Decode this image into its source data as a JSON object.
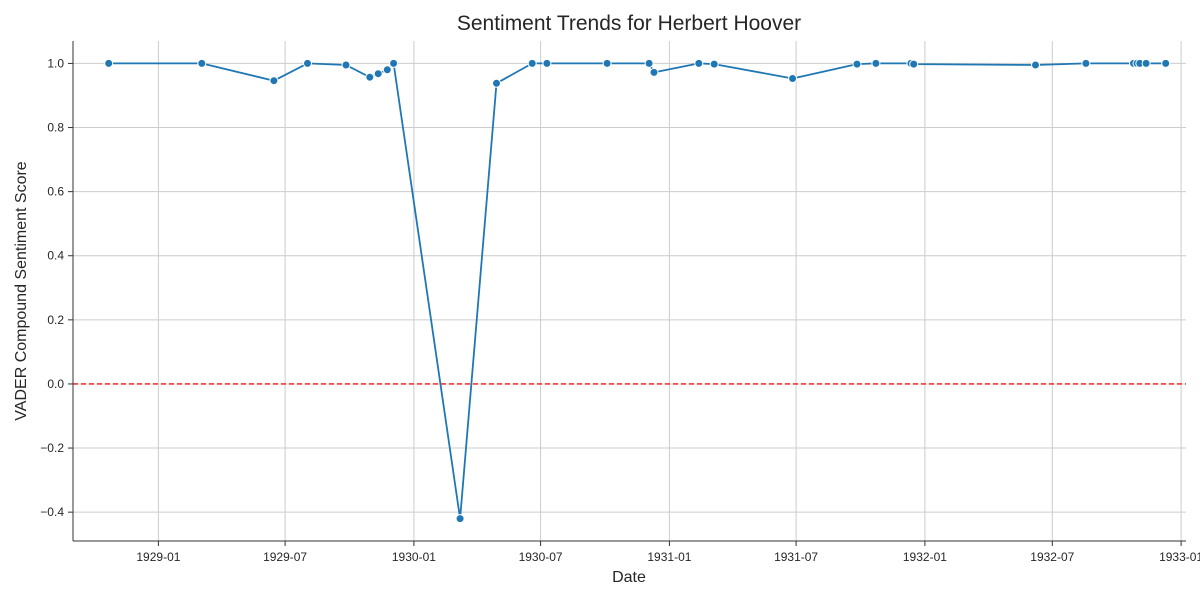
{
  "chart_data": {
    "type": "line",
    "title": "Sentiment Trends for Herbert Hoover",
    "xlabel": "Date",
    "ylabel": "VADER Compound Sentiment Score",
    "x_axis_type": "date",
    "xlim": [
      "1928-09-01",
      "1933-01-08"
    ],
    "ylim": [
      -0.49,
      1.07
    ],
    "x_ticks": [
      "1929-01",
      "1929-07",
      "1930-01",
      "1930-07",
      "1931-01",
      "1931-07",
      "1932-01",
      "1932-07",
      "1933-01"
    ],
    "y_ticks": [
      "−0.4",
      "−0.2",
      "0.0",
      "0.2",
      "0.4",
      "0.6",
      "0.8",
      "1.0"
    ],
    "grid": true,
    "reference_line": {
      "y": 0.0,
      "color": "#e41a1c",
      "style": "dashed"
    },
    "series": [
      {
        "color": "#1f77b4",
        "marker": "circle",
        "points": [
          {
            "x": "1928-10-22",
            "y": 1.0
          },
          {
            "x": "1929-03-04",
            "y": 1.0
          },
          {
            "x": "1929-06-15",
            "y": 0.946
          },
          {
            "x": "1929-08-02",
            "y": 1.0
          },
          {
            "x": "1929-09-26",
            "y": 0.995
          },
          {
            "x": "1929-10-30",
            "y": 0.957
          },
          {
            "x": "1929-11-11",
            "y": 0.968
          },
          {
            "x": "1929-11-24",
            "y": 0.98
          },
          {
            "x": "1929-12-03",
            "y": 1.0
          },
          {
            "x": "1930-03-08",
            "y": -0.42
          },
          {
            "x": "1930-04-29",
            "y": 0.938
          },
          {
            "x": "1930-06-19",
            "y": 1.0
          },
          {
            "x": "1930-07-10",
            "y": 1.0
          },
          {
            "x": "1930-10-04",
            "y": 1.0
          },
          {
            "x": "1930-12-03",
            "y": 1.0
          },
          {
            "x": "1930-12-10",
            "y": 0.972
          },
          {
            "x": "1931-02-12",
            "y": 1.0
          },
          {
            "x": "1931-03-06",
            "y": 0.998
          },
          {
            "x": "1931-06-26",
            "y": 0.953
          },
          {
            "x": "1931-09-26",
            "y": 0.998
          },
          {
            "x": "1931-10-23",
            "y": 1.0
          },
          {
            "x": "1931-12-12",
            "y": 1.0
          },
          {
            "x": "1931-12-16",
            "y": 0.998
          },
          {
            "x": "1932-06-07",
            "y": 0.995
          },
          {
            "x": "1932-08-18",
            "y": 1.0
          },
          {
            "x": "1932-10-25",
            "y": 1.0
          },
          {
            "x": "1932-10-30",
            "y": 1.0
          },
          {
            "x": "1932-11-03",
            "y": 1.0
          },
          {
            "x": "1932-11-12",
            "y": 1.0
          },
          {
            "x": "1932-12-10",
            "y": 1.0
          }
        ]
      }
    ]
  }
}
